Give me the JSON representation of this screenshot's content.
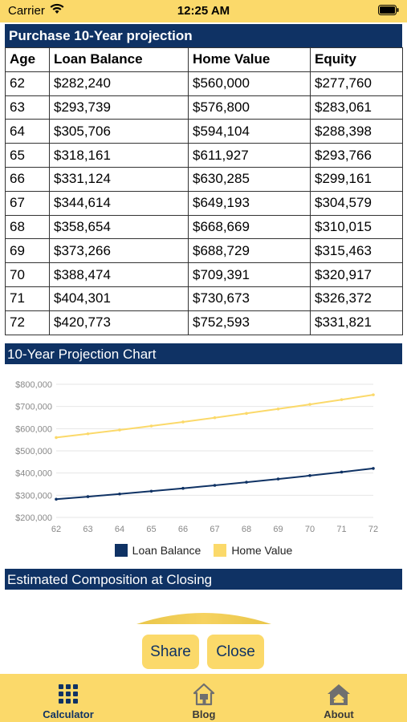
{
  "status_bar": {
    "carrier": "Carrier",
    "time": "12:25 AM"
  },
  "table": {
    "title": "Purchase 10-Year projection",
    "headers": [
      "Age",
      "Loan Balance",
      "Home Value",
      "Equity"
    ],
    "rows": [
      [
        "62",
        "$282,240",
        "$560,000",
        "$277,760"
      ],
      [
        "63",
        "$293,739",
        "$576,800",
        "$283,061"
      ],
      [
        "64",
        "$305,706",
        "$594,104",
        "$288,398"
      ],
      [
        "65",
        "$318,161",
        "$611,927",
        "$293,766"
      ],
      [
        "66",
        "$331,124",
        "$630,285",
        "$299,161"
      ],
      [
        "67",
        "$344,614",
        "$649,193",
        "$304,579"
      ],
      [
        "68",
        "$358,654",
        "$668,669",
        "$310,015"
      ],
      [
        "69",
        "$373,266",
        "$688,729",
        "$315,463"
      ],
      [
        "70",
        "$388,474",
        "$709,391",
        "$320,917"
      ],
      [
        "71",
        "$404,301",
        "$730,673",
        "$326,372"
      ],
      [
        "72",
        "$420,773",
        "$752,593",
        "$331,821"
      ]
    ]
  },
  "chart_header": "10-Year Projection Chart",
  "chart_data": {
    "type": "line",
    "x": [
      62,
      63,
      64,
      65,
      66,
      67,
      68,
      69,
      70,
      71,
      72
    ],
    "series": [
      {
        "name": "Loan Balance",
        "color": "#0f3264",
        "values": [
          282240,
          293739,
          305706,
          318161,
          331124,
          344614,
          358654,
          373266,
          388474,
          404301,
          420773
        ]
      },
      {
        "name": "Home Value",
        "color": "#fbd96a",
        "values": [
          560000,
          576800,
          594104,
          611927,
          630285,
          649193,
          668669,
          688729,
          709391,
          730673,
          752593
        ]
      }
    ],
    "y_ticks": [
      "$800,000",
      "$700,000",
      "$600,000",
      "$500,000",
      "$400,000",
      "$300,000",
      "$200,000"
    ],
    "y_tick_values": [
      800000,
      700000,
      600000,
      500000,
      400000,
      300000,
      200000
    ],
    "x_tick_labels": [
      "62",
      "63",
      "64",
      "65",
      "66",
      "67",
      "68",
      "69",
      "70",
      "71",
      "72"
    ],
    "ylim": [
      200000,
      800000
    ],
    "grid": true,
    "legend_position": "bottom"
  },
  "composition_header": "Estimated Composition at Closing",
  "buttons": {
    "share": "Share",
    "close": "Close"
  },
  "tabs": [
    {
      "label": "Calculator",
      "icon": "grid-icon",
      "active": true
    },
    {
      "label": "Blog",
      "icon": "house-icon",
      "active": false
    },
    {
      "label": "About",
      "icon": "about-house-icon",
      "active": false
    }
  ],
  "colors": {
    "navy": "#0f3264",
    "yellow": "#fbd96a"
  }
}
